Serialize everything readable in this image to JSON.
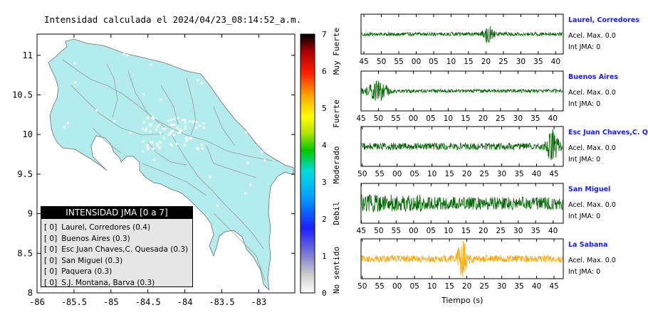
{
  "title": "Intensidad calculada el 2024/04/23_08:14:52_a.m.",
  "map": {
    "xticks": [
      "-86",
      "-85.5",
      "-85",
      "-84.5",
      "-84",
      "-83.5",
      "-83"
    ],
    "yticks": [
      "8",
      "8.5",
      "9",
      "9.5",
      "10",
      "10.5",
      "11"
    ],
    "colors": {
      "land": "#b3ecec",
      "sea": "#ffffff",
      "roads": "#9a9a9a",
      "border": "#6e6e6e"
    }
  },
  "colorbar": {
    "ticks": [
      "0",
      "1",
      "2",
      "3",
      "4",
      "5",
      "6",
      "7"
    ],
    "labels": [
      "No sentido",
      "Debil",
      "Moderado",
      "Fuerte",
      "Muy Fuerte"
    ]
  },
  "legend": {
    "header": "INTENSIDAD JMA [0 a 7]",
    "rows": [
      {
        "level": "[ 0]",
        "text": "Laurel, Corredores (0.4)"
      },
      {
        "level": "[ 0]",
        "text": "Buenos Aires (0.3)"
      },
      {
        "level": "[ 0]",
        "text": "Esc Juan Chaves,C. Quesada (0.3)"
      },
      {
        "level": "[ 0]",
        "text": "San Miguel (0.3)"
      },
      {
        "level": "[ 0]",
        "text": "Paquera (0.3)"
      },
      {
        "level": "[ 0]",
        "text": "S.J. Montana, Barva (0.3)"
      }
    ]
  },
  "chart_data": {
    "type": "line",
    "xlabel": "Tiempo (s)",
    "panels": [
      {
        "name": "Laurel, Corredores",
        "accel": "Acel. Max. 0.0",
        "jma": "Int JMA: 0",
        "color": "#006400",
        "xticks": [
          "45",
          "50",
          "55",
          "00",
          "05",
          "10",
          "15",
          "20",
          "25",
          "30",
          "35",
          "40"
        ],
        "first_tick_offset": 0.165,
        "burst": 0.63
      },
      {
        "name": "Buenos Aires",
        "accel": "Acel. Max. 0.0",
        "jma": "Int JMA: 0",
        "color": "#006400",
        "xticks": [
          "45",
          "50",
          "55",
          "00",
          "05",
          "10",
          "15",
          "20",
          "25",
          "30",
          "35",
          "40"
        ],
        "first_tick_offset": 0.0,
        "burst": 0.1
      },
      {
        "name": "Esc Juan Chaves,C. Qu",
        "accel": "Acel. Max. 0.0",
        "jma": "Int JMA: 0",
        "color": "#006400",
        "xticks": [
          "50",
          "55",
          "00",
          "05",
          "10",
          "15",
          "20",
          "25",
          "30",
          "35",
          "40",
          "45"
        ],
        "first_tick_offset": 0.07,
        "burst": 0.95
      },
      {
        "name": "San Miguel",
        "accel": "Acel. Max. 0.0",
        "jma": "Int JMA: 0",
        "color": "#006400",
        "xticks": [
          "45",
          "50",
          "55",
          "00",
          "05",
          "10",
          "15",
          "20",
          "25",
          "30",
          "35",
          "40"
        ],
        "first_tick_offset": 0.015,
        "burst": 0.1
      },
      {
        "name": "La Sabana",
        "accel": "Acel. Max. 0.0",
        "jma": "Int JMA: 0",
        "color": "#ffa500",
        "xticks": [
          "50",
          "55",
          "00",
          "05",
          "10",
          "15",
          "20",
          "25",
          "30",
          "35",
          "40",
          "45"
        ],
        "first_tick_offset": 0.07,
        "burst": 0.5
      }
    ]
  }
}
